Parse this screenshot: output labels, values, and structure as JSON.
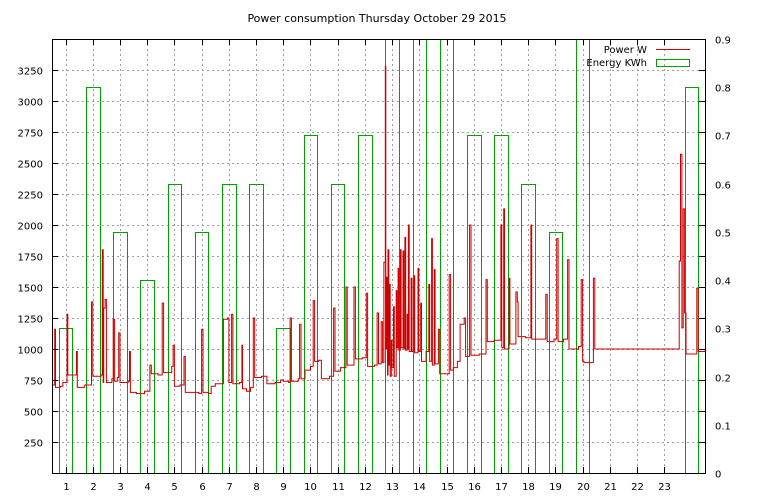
{
  "chart_data": {
    "type": "bar",
    "title": "Power consumption Thursday October 29 2015",
    "xlabel": "",
    "ylabel": "",
    "x_ticks": [
      "1",
      "2",
      "3",
      "4",
      "5",
      "6",
      "7",
      "8",
      "9",
      "10",
      "11",
      "12",
      "13",
      "14",
      "15",
      "16",
      "17",
      "18",
      "19",
      "20",
      "21",
      "22",
      "23"
    ],
    "y_ticks": [
      "250",
      "500",
      "750",
      "1000",
      "1250",
      "1500",
      "1750",
      "2000",
      "2250",
      "2500",
      "2750",
      "3000",
      "3250"
    ],
    "y2_ticks": [
      "0",
      "0.1",
      "0.2",
      "0.3",
      "0.4",
      "0.5",
      "0.6",
      "0.7",
      "0.8",
      "0.9"
    ],
    "xlim": [
      0,
      24
    ],
    "ylim": [
      0,
      3500
    ],
    "y2lim": [
      0,
      0.9
    ],
    "grid": true,
    "legend_position": "top-right",
    "series": [
      {
        "name": "Power W",
        "type": "line",
        "axis": "left",
        "color": "#cc0000",
        "points": [
          [
            0.0,
            710
          ],
          [
            0.1,
            1160
          ],
          [
            0.13,
            690
          ],
          [
            0.3,
            700
          ],
          [
            0.4,
            730
          ],
          [
            0.55,
            1280
          ],
          [
            0.58,
            790
          ],
          [
            0.9,
            980
          ],
          [
            0.93,
            690
          ],
          [
            1.2,
            710
          ],
          [
            1.45,
            1380
          ],
          [
            1.5,
            780
          ],
          [
            1.8,
            790
          ],
          [
            1.85,
            1800
          ],
          [
            1.88,
            730
          ],
          [
            1.9,
            1330
          ],
          [
            1.95,
            1400
          ],
          [
            2.0,
            730
          ],
          [
            2.2,
            760
          ],
          [
            2.25,
            1240
          ],
          [
            2.3,
            740
          ],
          [
            2.4,
            770
          ],
          [
            2.45,
            1130
          ],
          [
            2.5,
            730
          ],
          [
            2.8,
            740
          ],
          [
            2.85,
            980
          ],
          [
            2.88,
            650
          ],
          [
            3.0,
            650
          ],
          [
            3.1,
            640
          ],
          [
            3.4,
            660
          ],
          [
            3.6,
            870
          ],
          [
            3.65,
            800
          ],
          [
            3.9,
            790
          ],
          [
            4.05,
            1370
          ],
          [
            4.1,
            810
          ],
          [
            4.4,
            860
          ],
          [
            4.45,
            1030
          ],
          [
            4.5,
            700
          ],
          [
            4.7,
            710
          ],
          [
            4.85,
            940
          ],
          [
            4.9,
            650
          ],
          [
            5.0,
            650
          ],
          [
            5.4,
            640
          ],
          [
            5.5,
            1160
          ],
          [
            5.55,
            650
          ],
          [
            5.75,
            640
          ],
          [
            5.85,
            700
          ],
          [
            6.0,
            720
          ],
          [
            6.3,
            1240
          ],
          [
            6.45,
            1250
          ],
          [
            6.5,
            730
          ],
          [
            6.6,
            1280
          ],
          [
            6.65,
            720
          ],
          [
            6.9,
            730
          ],
          [
            6.98,
            1030
          ],
          [
            7.0,
            680
          ],
          [
            7.15,
            660
          ],
          [
            7.3,
            690
          ],
          [
            7.4,
            1250
          ],
          [
            7.45,
            770
          ],
          [
            7.7,
            780
          ],
          [
            7.9,
            720
          ],
          [
            8.2,
            730
          ],
          [
            8.4,
            750
          ],
          [
            8.5,
            740
          ],
          [
            8.7,
            730
          ],
          [
            8.75,
            1250
          ],
          [
            8.8,
            740
          ],
          [
            9.05,
            760
          ],
          [
            9.1,
            1200
          ],
          [
            9.15,
            760
          ],
          [
            9.3,
            830
          ],
          [
            9.5,
            860
          ],
          [
            9.6,
            1390
          ],
          [
            9.65,
            900
          ],
          [
            9.8,
            910
          ],
          [
            9.9,
            760
          ],
          [
            10.2,
            780
          ],
          [
            10.35,
            1330
          ],
          [
            10.4,
            820
          ],
          [
            10.6,
            850
          ],
          [
            10.8,
            1500
          ],
          [
            10.85,
            870
          ],
          [
            11.0,
            870
          ],
          [
            11.1,
            1500
          ],
          [
            11.15,
            920
          ],
          [
            11.4,
            930
          ],
          [
            11.55,
            1450
          ],
          [
            11.6,
            860
          ],
          [
            11.85,
            870
          ],
          [
            11.95,
            1290
          ],
          [
            12.0,
            880
          ],
          [
            12.1,
            1220
          ],
          [
            12.15,
            890
          ],
          [
            12.2,
            1700
          ],
          [
            12.25,
            3280
          ],
          [
            12.27,
            1000
          ],
          [
            12.3,
            1580
          ],
          [
            12.33,
            790
          ],
          [
            12.35,
            1800
          ],
          [
            12.38,
            870
          ],
          [
            12.4,
            1520
          ],
          [
            12.43,
            780
          ],
          [
            12.47,
            1070
          ],
          [
            12.5,
            850
          ],
          [
            12.55,
            1340
          ],
          [
            12.58,
            780
          ],
          [
            12.65,
            1470
          ],
          [
            12.68,
            1010
          ],
          [
            12.72,
            1650
          ],
          [
            12.75,
            990
          ],
          [
            12.8,
            1800
          ],
          [
            12.83,
            1010
          ],
          [
            12.9,
            1790
          ],
          [
            12.93,
            1000
          ],
          [
            12.97,
            1900
          ],
          [
            13.0,
            990
          ],
          [
            13.05,
            1280
          ],
          [
            13.08,
            1000
          ],
          [
            13.1,
            2000
          ],
          [
            13.13,
            980
          ],
          [
            13.2,
            1570
          ],
          [
            13.23,
            980
          ],
          [
            13.3,
            1590
          ],
          [
            13.33,
            970
          ],
          [
            13.45,
            1650
          ],
          [
            13.48,
            980
          ],
          [
            13.55,
            1370
          ],
          [
            13.58,
            900
          ],
          [
            13.75,
            980
          ],
          [
            13.85,
            1520
          ],
          [
            13.88,
            900
          ],
          [
            13.95,
            1890
          ],
          [
            13.98,
            870
          ],
          [
            14.05,
            1640
          ],
          [
            14.08,
            880
          ],
          [
            14.2,
            1160
          ],
          [
            14.25,
            800
          ],
          [
            14.5,
            800
          ],
          [
            14.6,
            1600
          ],
          [
            14.65,
            830
          ],
          [
            14.75,
            850
          ],
          [
            14.9,
            900
          ],
          [
            15.0,
            1200
          ],
          [
            15.15,
            1250
          ],
          [
            15.2,
            940
          ],
          [
            15.35,
            2000
          ],
          [
            15.4,
            950
          ],
          [
            15.7,
            960
          ],
          [
            15.95,
            1560
          ],
          [
            16.0,
            1060
          ],
          [
            16.25,
            1070
          ],
          [
            16.5,
            2000
          ],
          [
            16.53,
            1010
          ],
          [
            16.6,
            2130
          ],
          [
            16.63,
            1000
          ],
          [
            16.8,
            1570
          ],
          [
            16.83,
            1040
          ],
          [
            17.05,
            1460
          ],
          [
            17.1,
            1380
          ],
          [
            17.13,
            1100
          ],
          [
            17.4,
            1090
          ],
          [
            17.6,
            2000
          ],
          [
            17.63,
            1080
          ],
          [
            18.15,
            1440
          ],
          [
            18.2,
            1060
          ],
          [
            18.45,
            1080
          ],
          [
            18.55,
            1890
          ],
          [
            18.6,
            1060
          ],
          [
            18.8,
            1080
          ],
          [
            18.95,
            1720
          ],
          [
            19.0,
            1000
          ],
          [
            19.35,
            1020
          ],
          [
            19.45,
            1560
          ],
          [
            19.5,
            900
          ],
          [
            19.55,
            890
          ],
          [
            19.9,
            1570
          ],
          [
            19.95,
            1000
          ],
          [
            20.5,
            1000
          ],
          [
            21.0,
            1000
          ],
          [
            21.5,
            1000
          ],
          [
            22.0,
            1000
          ],
          [
            22.5,
            1000
          ],
          [
            22.9,
            1000
          ],
          [
            23.0,
            1000
          ],
          [
            23.05,
            1710
          ],
          [
            23.1,
            2570
          ],
          [
            23.15,
            1170
          ],
          [
            23.2,
            2130
          ],
          [
            23.25,
            1290
          ],
          [
            23.3,
            960
          ],
          [
            23.6,
            960
          ],
          [
            23.7,
            1490
          ],
          [
            23.75,
            980
          ],
          [
            24.0,
            990
          ]
        ]
      },
      {
        "name": "Energy KWh",
        "type": "bar",
        "axis": "right",
        "color": "#00a000",
        "bars": [
          [
            0.0,
            0.3
          ],
          [
            1.0,
            0.8
          ],
          [
            2.0,
            0.5
          ],
          [
            3.0,
            0.4
          ],
          [
            4.0,
            0.6
          ],
          [
            5.0,
            0.5
          ],
          [
            6.0,
            0.6
          ],
          [
            7.0,
            0.6
          ],
          [
            8.0,
            0.3
          ],
          [
            9.0,
            0.7
          ],
          [
            10.0,
            0.6
          ],
          [
            11.0,
            0.7
          ],
          [
            12.0,
            1.0
          ],
          [
            13.0,
            1.0
          ],
          [
            14.0,
            1.0
          ],
          [
            15.0,
            0.7
          ],
          [
            16.0,
            0.7
          ],
          [
            17.0,
            0.6
          ],
          [
            18.0,
            0.5
          ],
          [
            19.0,
            1.0
          ],
          [
            20.0,
            0
          ],
          [
            21.0,
            0
          ],
          [
            22.0,
            0
          ],
          [
            23.0,
            0.8
          ]
        ]
      }
    ]
  }
}
